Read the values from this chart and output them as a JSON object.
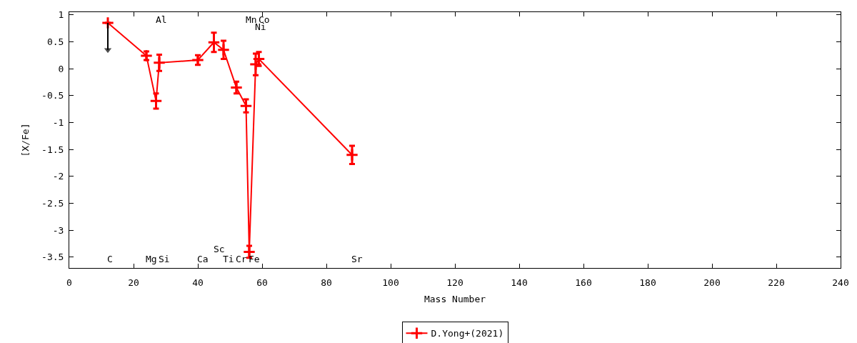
{
  "chart_data": {
    "type": "line",
    "xlabel": "Mass Number",
    "ylabel": "[X/Fe]",
    "xlim": [
      0,
      240
    ],
    "ylim": [
      -3.7,
      1.05
    ],
    "xticks": [
      0,
      20,
      40,
      60,
      80,
      100,
      120,
      140,
      160,
      180,
      200,
      220,
      240
    ],
    "yticks": [
      1,
      0.5,
      0,
      -0.5,
      -1,
      -1.5,
      -2,
      -2.5,
      -3,
      -3.5
    ],
    "legend": "bottom",
    "x": [
      12,
      24,
      27,
      28,
      40,
      45,
      48,
      52,
      55,
      56,
      58,
      59,
      88
    ],
    "series": [
      {
        "name": "D.Yong+(2021)",
        "color": "#ff0000",
        "marker": "cross",
        "values": [
          0.85,
          0.24,
          -0.6,
          0.11,
          0.16,
          0.49,
          0.35,
          -0.35,
          -0.69,
          -3.4,
          0.08,
          0.18,
          -1.6
        ],
        "errors": [
          null,
          0.08,
          0.14,
          0.15,
          0.09,
          0.18,
          0.17,
          0.11,
          0.12,
          0.11,
          0.2,
          0.13,
          0.17
        ]
      },
      {
        "color": "#000000",
        "marker": "triangle",
        "x": [
          12,
          12
        ],
        "values": [
          0.85,
          0.35
        ]
      }
    ],
    "annotations": [
      "C",
      "Mg",
      "Al",
      "Si",
      "Ca",
      "Sc",
      "Ti",
      "Cr",
      "Mn",
      "Fe",
      "Ni",
      "Co",
      "Sr"
    ]
  }
}
